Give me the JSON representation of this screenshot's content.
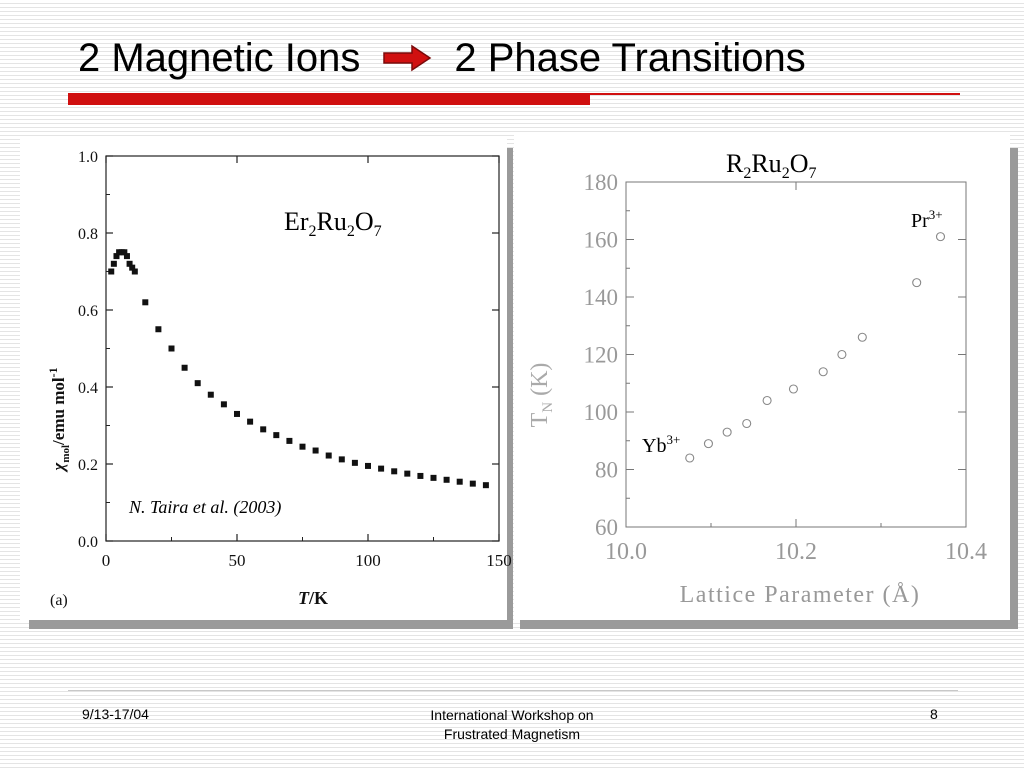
{
  "title": {
    "left": "2 Magnetic Ions",
    "right": "2 Phase Transitions",
    "arrow_color": "#d01010"
  },
  "left_plot": {
    "compound": {
      "base": [
        "Er",
        "Ru",
        "O"
      ],
      "subs": [
        "2",
        "2",
        "7"
      ]
    },
    "citation": "N. Taira et al. (2003)",
    "panel_label": "(a)",
    "ylabel": "χ",
    "ylabel_sub": "mol",
    "ylabel_rest": "/emu mol",
    "ylabel_sup": "-1",
    "xlabel_italic": "T",
    "xlabel_rest": "/K"
  },
  "right_plot": {
    "compound": {
      "base": [
        "R",
        "Ru",
        "O"
      ],
      "subs": [
        "2",
        "2",
        "7"
      ]
    },
    "ylabel": "T",
    "ylabel_sub": "N",
    "ylabel_unit": " (K)",
    "xlabel": "Lattice Parameter (Å)",
    "annotations": [
      {
        "ion": "Yb",
        "charge": "3+"
      },
      {
        "ion": "Pr",
        "charge": "3+"
      }
    ]
  },
  "chart_data": [
    {
      "type": "scatter",
      "title": "Er2Ru2O7",
      "xlabel": "T/K",
      "ylabel": "χmol/emu mol-1",
      "xlim": [
        0,
        150
      ],
      "ylim": [
        0.0,
        1.0
      ],
      "xticks": [
        "0",
        "50",
        "100",
        "150"
      ],
      "yticks": [
        "0.0",
        "0.2",
        "0.4",
        "0.6",
        "0.8",
        "1.0"
      ],
      "marker": "filled",
      "x": [
        2,
        3,
        4,
        5,
        6,
        7,
        8,
        9,
        10,
        11,
        15,
        20,
        25,
        30,
        35,
        40,
        45,
        50,
        55,
        60,
        65,
        70,
        75,
        80,
        85,
        90,
        95,
        100,
        105,
        110,
        115,
        120,
        125,
        130,
        135,
        140,
        145
      ],
      "y": [
        0.7,
        0.72,
        0.74,
        0.75,
        0.75,
        0.75,
        0.74,
        0.72,
        0.71,
        0.7,
        0.62,
        0.55,
        0.5,
        0.45,
        0.41,
        0.38,
        0.355,
        0.33,
        0.31,
        0.29,
        0.275,
        0.26,
        0.245,
        0.235,
        0.222,
        0.212,
        0.203,
        0.195,
        0.188,
        0.181,
        0.175,
        0.169,
        0.164,
        0.159,
        0.154,
        0.149,
        0.145
      ],
      "grid": false
    },
    {
      "type": "scatter",
      "title": "R2Ru2O7",
      "xlabel": "Lattice Parameter (Å)",
      "ylabel": "TN (K)",
      "xlim": [
        10.0,
        10.4
      ],
      "ylim": [
        60,
        180
      ],
      "xticks": [
        "10.0",
        "10.2",
        "10.4"
      ],
      "yticks": [
        "60",
        "80",
        "100",
        "120",
        "140",
        "160",
        "180"
      ],
      "marker": "open-circle",
      "x": [
        10.075,
        10.097,
        10.119,
        10.142,
        10.166,
        10.197,
        10.232,
        10.254,
        10.278,
        10.342,
        10.37
      ],
      "y": [
        84,
        89,
        93,
        96,
        104,
        108,
        114,
        120,
        126,
        145,
        161
      ],
      "grid": false
    }
  ],
  "footer": {
    "date": "9/13-17/04",
    "event_line1": "International Workshop on",
    "event_line2": "Frustrated Magnetism",
    "page": "8"
  }
}
